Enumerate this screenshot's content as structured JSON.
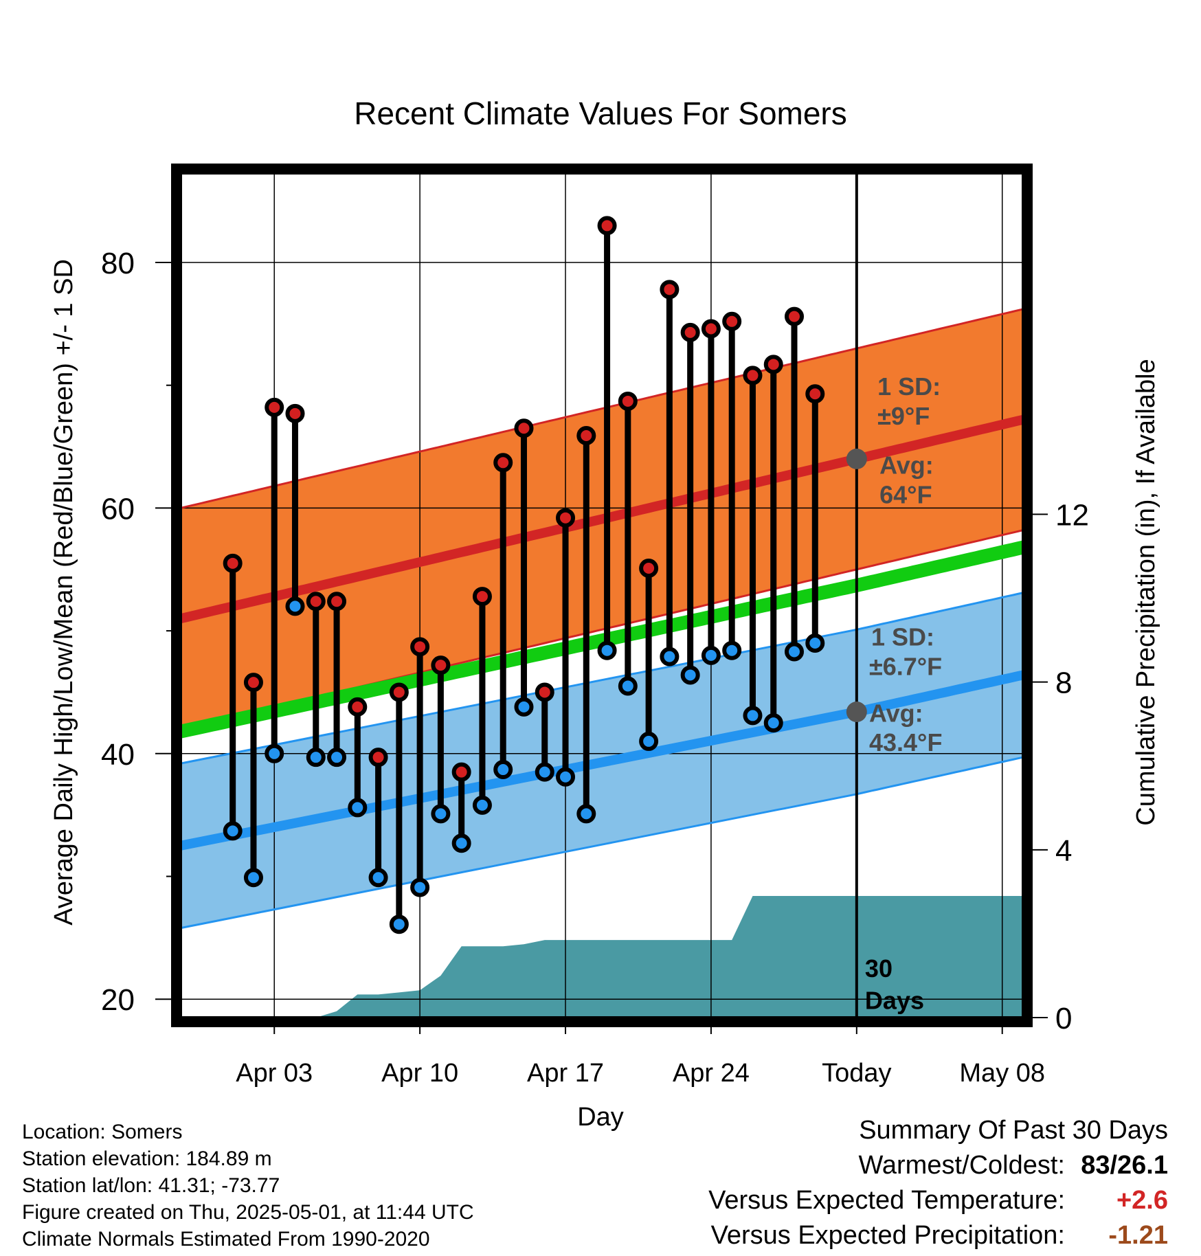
{
  "chart_data": {
    "type": "range-bar",
    "title": "Recent Climate Values For Somers",
    "xlabel": "Day",
    "ylabel": "Average Daily High/Low/Mean (Red/Blue/Green) +/- 1 SD",
    "y2label": "Cumulative Precipitation (in), If Available",
    "ylim": [
      18.5,
      87.5
    ],
    "y2lim": [
      0,
      20.2
    ],
    "yticks": [
      20,
      40,
      60,
      80
    ],
    "yticks_minor": [
      30,
      50,
      70
    ],
    "y2ticks": [
      0,
      4,
      8,
      12
    ],
    "xlim": [
      -4.5,
      36.0
    ],
    "xticks": [
      {
        "x": 0,
        "label": "Apr 03"
      },
      {
        "x": 7,
        "label": "Apr 10"
      },
      {
        "x": 14,
        "label": "Apr 17"
      },
      {
        "x": 21,
        "label": "Apr 24"
      },
      {
        "x": 28,
        "label": "Today"
      },
      {
        "x": 35,
        "label": "May 08"
      }
    ],
    "today_x": 28,
    "grid": true,
    "normals": {
      "high_mean": [
        [
          -4.5,
          51.0
        ],
        [
          28,
          64.0
        ],
        [
          36,
          67.2
        ]
      ],
      "high_sd": 9,
      "low_mean": [
        [
          -4.5,
          32.5
        ],
        [
          28,
          43.4
        ],
        [
          36,
          46.4
        ]
      ],
      "low_sd": 6.7,
      "mean_avg": [
        [
          -4.5,
          41.8
        ],
        [
          28,
          53.7
        ],
        [
          36,
          56.8
        ]
      ]
    },
    "series": [
      {
        "name": "High",
        "x": [
          -2,
          -1,
          0,
          1,
          2,
          3,
          4,
          5,
          6,
          7,
          8,
          9,
          10,
          11,
          12,
          13,
          14,
          15,
          16,
          17,
          18,
          19,
          20,
          21,
          22,
          23,
          24,
          25,
          26,
          27
        ],
        "values": [
          55.5,
          45.8,
          68.2,
          67.7,
          52.4,
          52.4,
          43.8,
          39.7,
          45,
          48.7,
          47.2,
          38.5,
          52.8,
          63.7,
          66.5,
          45,
          59.2,
          65.9,
          83,
          68.7,
          55.1,
          77.8,
          74.3,
          74.6,
          75.2,
          70.8,
          71.7,
          75.6,
          69.3,
          null
        ]
      },
      {
        "name": "Low",
        "x": [
          -2,
          -1,
          0,
          1,
          2,
          3,
          4,
          5,
          6,
          7,
          8,
          9,
          10,
          11,
          12,
          13,
          14,
          15,
          16,
          17,
          18,
          19,
          20,
          21,
          22,
          23,
          24,
          25,
          26,
          27
        ],
        "values": [
          33.7,
          29.9,
          40,
          52,
          39.7,
          39.7,
          35.6,
          29.9,
          26.1,
          29.1,
          35.1,
          32.7,
          35.8,
          38.7,
          43.8,
          38.5,
          38.1,
          35.1,
          48.4,
          45.5,
          41,
          47.9,
          46.4,
          48,
          48.4,
          43.1,
          42.5,
          48.3,
          49,
          null
        ]
      }
    ],
    "precip": {
      "name": "Cumulative Precipitation",
      "x": [
        -4.5,
        0,
        2.0,
        3,
        4,
        5,
        6,
        7,
        8,
        9,
        11,
        12,
        13,
        14,
        15,
        16,
        17,
        18,
        19,
        20,
        21,
        22,
        23,
        24,
        36
      ],
      "values": [
        0,
        0,
        0,
        0.15,
        0.55,
        0.55,
        0.6,
        0.65,
        1.0,
        1.7,
        1.7,
        1.75,
        1.85,
        1.85,
        1.85,
        1.85,
        1.85,
        1.85,
        1.85,
        1.85,
        1.85,
        1.85,
        2.9,
        2.9,
        2.9
      ]
    },
    "annotations": [
      {
        "text": "1 SD:",
        "x": 29,
        "y": 69.2
      },
      {
        "text": "±9°F",
        "x": 29,
        "y": 66.8
      },
      {
        "text": "Avg:",
        "x": 29.1,
        "y": 62.8
      },
      {
        "text": "64°F",
        "x": 29.1,
        "y": 60.4
      },
      {
        "text": "1 SD:",
        "x": 28.7,
        "y": 48.8
      },
      {
        "text": "±6.7°F",
        "x": 28.6,
        "y": 46.4
      },
      {
        "text": "Avg:",
        "x": 28.6,
        "y": 42.6
      },
      {
        "text": "43.4°F",
        "x": 28.6,
        "y": 40.2
      },
      {
        "text": "30",
        "x": 28.4,
        "y": 21.8
      },
      {
        "text": "Days",
        "x": 28.4,
        "y": 19.2
      }
    ],
    "colors": {
      "high_band": "#f27a2e",
      "high_line": "#d22525",
      "low_band": "#85c1e9",
      "low_line": "#2394f0",
      "mean_line": "#11cc11",
      "precip": "#4a9aa3",
      "high_marker": "#d42020",
      "low_marker": "#2394f0",
      "today_marker": "#555555",
      "annotation": "#4a4a4a"
    }
  },
  "info": {
    "location": "Location: Somers",
    "elevation": "Station elevation: 184.89 m",
    "latlon": "Station lat/lon: 41.31; -73.77",
    "created": "Figure created on Thu, 2025-05-01, at 11:44 UTC",
    "normals": "Climate Normals Estimated From 1990-2020"
  },
  "summary": {
    "heading": "Summary Of Past 30 Days",
    "warmest_label": "Warmest/Coldest:",
    "warmest_value": "83/26.1",
    "temp_label": "Versus Expected Temperature:",
    "temp_value": "+2.6",
    "temp_color": "#d22525",
    "precip_label": "Versus Expected Precipitation:",
    "precip_value": "-1.21",
    "precip_color": "#9c4a1c"
  }
}
